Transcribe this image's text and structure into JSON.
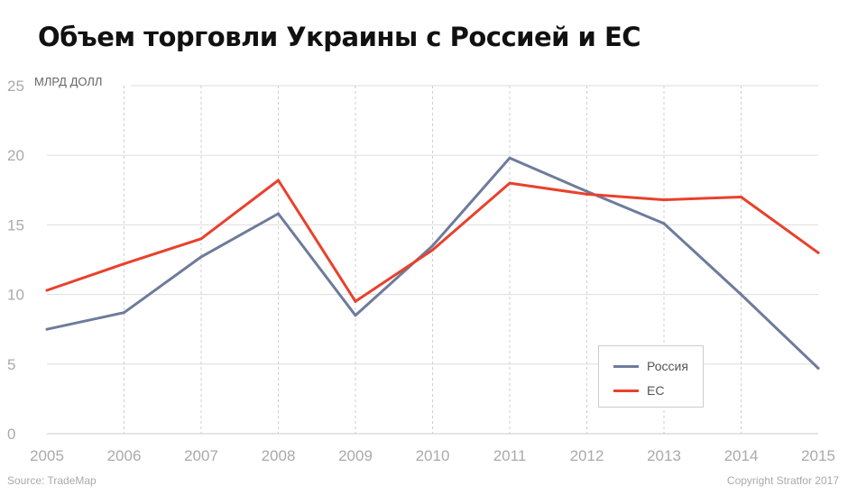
{
  "title": "Объем торговли Украины с Россией и ЕС",
  "footer": {
    "source": "Source: TradeMap",
    "copyright": "Copyright Stratfor 2017"
  },
  "chart_data": {
    "type": "line",
    "title": "Объем торговли Украины с Россией и ЕС",
    "ylabel": "МЛРД ДОЛЛ",
    "xlabel": "",
    "x": [
      "2005",
      "2006",
      "2007",
      "2008",
      "2009",
      "2010",
      "2011",
      "2012",
      "2013",
      "2014",
      "2015"
    ],
    "ylim": [
      0,
      25
    ],
    "yticks": [
      0,
      5,
      10,
      15,
      20,
      25
    ],
    "grid": true,
    "legend_position": "bottom-right",
    "series": [
      {
        "name": "Россия",
        "color": "#6e7b9b",
        "values": [
          7.5,
          8.7,
          12.7,
          15.8,
          8.5,
          13.5,
          19.8,
          17.4,
          15.1,
          10.0,
          4.7
        ]
      },
      {
        "name": "ЕС",
        "color": "#e8412c",
        "values": [
          10.3,
          12.2,
          14.0,
          18.2,
          9.5,
          13.2,
          18.0,
          17.2,
          16.8,
          17.0,
          13.0
        ]
      }
    ]
  }
}
